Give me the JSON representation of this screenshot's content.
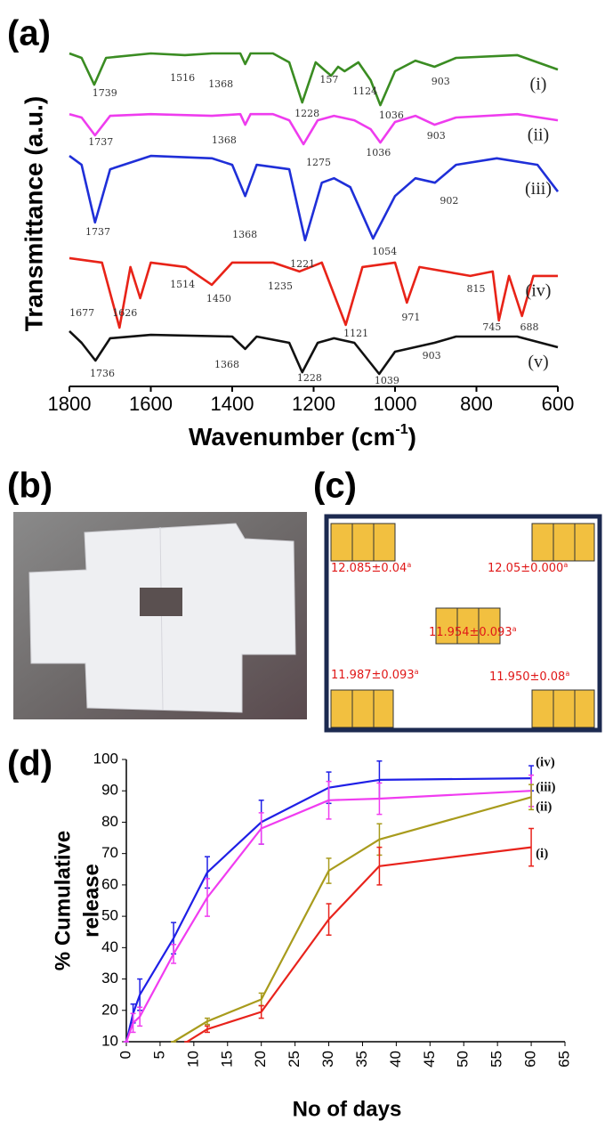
{
  "chart_data": [
    {
      "type": "line",
      "panel_label": "(a)",
      "x_label": [
        "Wavenumber (cm",
        "-1",
        ")"
      ],
      "y_label": "Transmittance (a.u.)",
      "xlim": [
        1800,
        600
      ],
      "xticks": [
        1800,
        1600,
        1400,
        1200,
        1000,
        800,
        600
      ],
      "ylim": [
        0,
        100
      ],
      "series": [
        {
          "name": "(i)",
          "color": "#3a8c22",
          "x": [
            1800,
            1770,
            1739,
            1710,
            1600,
            1516,
            1450,
            1380,
            1368,
            1355,
            1300,
            1260,
            1228,
            1195,
            1170,
            1157,
            1140,
            1124,
            1090,
            1060,
            1036,
            1000,
            950,
            903,
            850,
            700,
            600
          ],
          "values": [
            96.1,
            94.8,
            87.0,
            94.8,
            96.1,
            95.6,
            96.1,
            96.1,
            93.0,
            96.1,
            96.1,
            93.5,
            81.8,
            93.5,
            90.9,
            89.6,
            92.2,
            90.9,
            93.5,
            88.3,
            81.0,
            90.9,
            94.0,
            92.2,
            94.8,
            95.6,
            91.4
          ]
        },
        {
          "name": "(ii)",
          "color": "#ee3cee",
          "x": [
            1800,
            1770,
            1737,
            1700,
            1600,
            1450,
            1380,
            1368,
            1355,
            1300,
            1260,
            1225,
            1190,
            1150,
            1100,
            1060,
            1036,
            1000,
            950,
            903,
            850,
            700,
            600
          ],
          "values": [
            78.4,
            77.4,
            72.2,
            77.9,
            78.4,
            77.9,
            78.4,
            75.3,
            78.4,
            78.4,
            76.6,
            69.6,
            76.6,
            77.9,
            76.6,
            74.0,
            70.1,
            76.1,
            77.9,
            75.3,
            77.4,
            78.4,
            76.6
          ]
        },
        {
          "name": "(iii)",
          "color": "#1f2fd8",
          "x": [
            1800,
            1770,
            1737,
            1700,
            1600,
            1450,
            1400,
            1368,
            1340,
            1260,
            1221,
            1180,
            1150,
            1110,
            1054,
            1000,
            950,
            902,
            850,
            750,
            650,
            600
          ],
          "values": [
            66.2,
            63.6,
            46.8,
            62.3,
            66.2,
            65.5,
            63.6,
            54.5,
            63.6,
            62.3,
            41.6,
            58.4,
            59.7,
            57.1,
            42.1,
            54.5,
            59.7,
            58.4,
            63.6,
            65.5,
            63.6,
            55.8
          ]
        },
        {
          "name": "(iv)",
          "color": "#e82318",
          "x": [
            1800,
            1720,
            1677,
            1650,
            1626,
            1600,
            1514,
            1450,
            1400,
            1300,
            1235,
            1180,
            1121,
            1080,
            1000,
            971,
            940,
            815,
            760,
            745,
            720,
            688,
            660,
            600
          ],
          "values": [
            36.4,
            35.1,
            16.1,
            33.8,
            24.7,
            35.1,
            33.8,
            28.6,
            35.1,
            35.1,
            32.5,
            35.1,
            16.9,
            33.8,
            35.1,
            23.4,
            33.8,
            31.2,
            32.5,
            18.2,
            31.2,
            19.5,
            31.2,
            31.2
          ]
        },
        {
          "name": "(v)",
          "color": "#111111",
          "x": [
            1800,
            1770,
            1736,
            1700,
            1600,
            1400,
            1368,
            1340,
            1260,
            1228,
            1190,
            1150,
            1100,
            1039,
            1000,
            903,
            850,
            700,
            600
          ],
          "values": [
            15.1,
            11.7,
            6.5,
            13.0,
            14.0,
            13.5,
            9.9,
            13.5,
            11.7,
            3.1,
            11.7,
            13.0,
            11.7,
            2.6,
            9.1,
            11.7,
            13.5,
            13.5,
            10.4
          ]
        }
      ],
      "annotations": [
        {
          "text": "1739",
          "x": 1713,
          "y": 84.4
        },
        {
          "text": "1516",
          "x": 1522,
          "y": 88.8
        },
        {
          "text": "1368",
          "x": 1428,
          "y": 87.0
        },
        {
          "text": "1228",
          "x": 1216,
          "y": 78.4
        },
        {
          "text": "157",
          "x": 1162,
          "y": 88.3
        },
        {
          "text": "1124",
          "x": 1074,
          "y": 84.9
        },
        {
          "text": "1036",
          "x": 1009,
          "y": 77.9
        },
        {
          "text": "903",
          "x": 888,
          "y": 87.8
        },
        {
          "text": "1737",
          "x": 1723,
          "y": 70.1
        },
        {
          "text": "1368",
          "x": 1420,
          "y": 70.6
        },
        {
          "text": "1275",
          "x": 1188,
          "y": 64.2
        },
        {
          "text": "1036",
          "x": 1041,
          "y": 67.0
        },
        {
          "text": "903",
          "x": 899,
          "y": 71.9
        },
        {
          "text": "1737",
          "x": 1730,
          "y": 43.9
        },
        {
          "text": "1368",
          "x": 1369,
          "y": 43.1
        },
        {
          "text": "1221",
          "x": 1227,
          "y": 34.5
        },
        {
          "text": "1054",
          "x": 1026,
          "y": 38.2
        },
        {
          "text": "902",
          "x": 867,
          "y": 53.0
        },
        {
          "text": "1677",
          "x": 1769,
          "y": 20.3
        },
        {
          "text": "1626",
          "x": 1664,
          "y": 20.3
        },
        {
          "text": "1514",
          "x": 1522,
          "y": 28.6
        },
        {
          "text": "1450",
          "x": 1433,
          "y": 24.4
        },
        {
          "text": "1235",
          "x": 1282,
          "y": 28.1
        },
        {
          "text": "1121",
          "x": 1096,
          "y": 14.3
        },
        {
          "text": "971",
          "x": 961,
          "y": 19.0
        },
        {
          "text": "815",
          "x": 801,
          "y": 27.3
        },
        {
          "text": "745",
          "x": 762,
          "y": 16.1
        },
        {
          "text": "688",
          "x": 670,
          "y": 16.1
        },
        {
          "text": "1736",
          "x": 1719,
          "y": 2.6
        },
        {
          "text": "1368",
          "x": 1413,
          "y": 5.2
        },
        {
          "text": "1228",
          "x": 1210,
          "y": 1.3
        },
        {
          "text": "1039",
          "x": 1020,
          "y": 0.5
        },
        {
          "text": "903",
          "x": 910,
          "y": 7.8
        }
      ]
    },
    {
      "type": "line",
      "panel_label": "(d)",
      "x_label": "No of days",
      "y_label": [
        "% Cumulative",
        "release"
      ],
      "xlim": [
        0,
        65
      ],
      "xticks": [
        0,
        5,
        10,
        15,
        20,
        25,
        30,
        35,
        40,
        45,
        50,
        55,
        60,
        65
      ],
      "ylim": [
        10,
        100
      ],
      "yticks": [
        10,
        20,
        30,
        40,
        50,
        60,
        70,
        80,
        90,
        100
      ],
      "series": [
        {
          "name": "(iv)",
          "color": "#1f1fe6",
          "x": [
            0,
            1,
            2,
            7,
            12,
            20,
            30,
            37.5,
            60
          ],
          "values": [
            10,
            19,
            25,
            43,
            64,
            80,
            91,
            93.5,
            94
          ],
          "errors": [
            0,
            3,
            5,
            5,
            5,
            7,
            5,
            6,
            4
          ]
        },
        {
          "name": "(iii)",
          "color": "#f03cf0",
          "x": [
            0,
            1,
            2,
            7,
            12,
            20,
            30,
            37.5,
            60
          ],
          "values": [
            10,
            16,
            18,
            38,
            56,
            78,
            87,
            87.5,
            90
          ],
          "errors": [
            0,
            3,
            3,
            3,
            6,
            5,
            6,
            5,
            5
          ]
        },
        {
          "name": "(ii)",
          "color": "#a89b1c",
          "x": [
            7,
            12,
            20,
            30,
            37.5,
            60
          ],
          "values": [
            10,
            16.5,
            23.5,
            64.5,
            74.5,
            88
          ],
          "errors": [
            0,
            1,
            2,
            4,
            5,
            4
          ]
        },
        {
          "name": "(i)",
          "color": "#e8231c",
          "x": [
            9,
            12,
            20,
            30,
            37.5,
            60
          ],
          "values": [
            10,
            14,
            19.5,
            49,
            66,
            72
          ],
          "errors": [
            0,
            1,
            2,
            5,
            6,
            6
          ]
        }
      ]
    }
  ],
  "photo_panel": {
    "panel_label": "(b)"
  },
  "diagram_panel": {
    "panel_label": "(c)",
    "labels": [
      {
        "text": "12.085±0.04",
        "sup": "a"
      },
      {
        "text": "12.05±0.000",
        "sup": "a"
      },
      {
        "text": "11.954±0.093",
        "sup": "a"
      },
      {
        "text": "11.987±0.093",
        "sup": "a"
      },
      {
        "text": "11.950±0.08",
        "sup": "a"
      }
    ]
  }
}
